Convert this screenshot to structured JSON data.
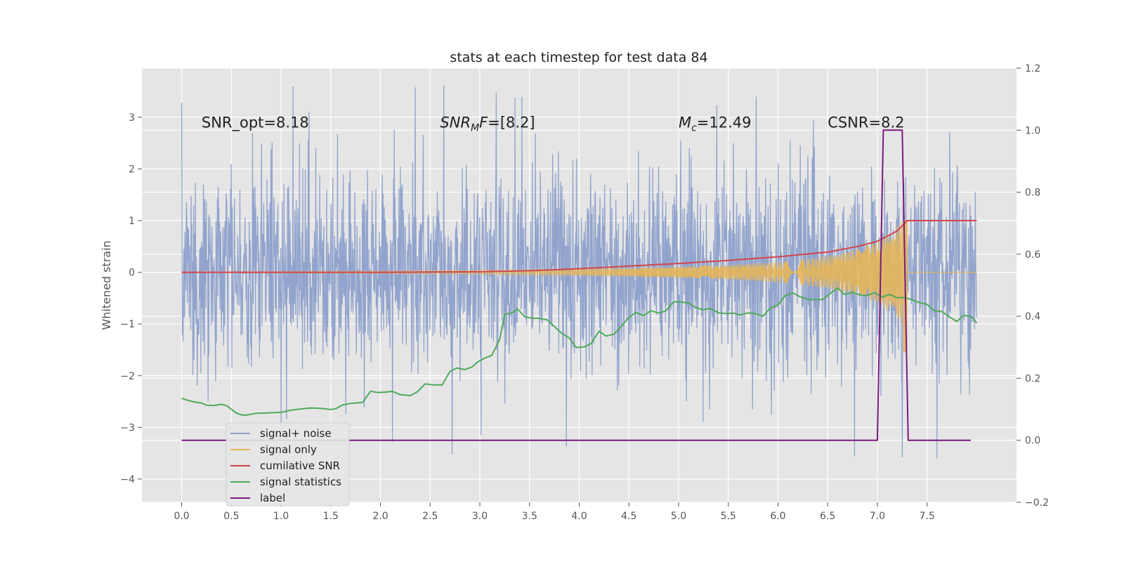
{
  "chart_data": {
    "type": "line",
    "title": "stats at each timestep for test data 84",
    "ylabel": "Whitened strain",
    "xlim": [
      -0.4,
      8.4
    ],
    "ylim": [
      -4.45,
      3.95
    ],
    "y2lim": [
      -0.2,
      1.2
    ],
    "x_ticks": [
      0.0,
      0.5,
      1.0,
      1.5,
      2.0,
      2.5,
      3.0,
      3.5,
      4.0,
      4.5,
      5.0,
      5.5,
      6.0,
      6.5,
      7.0,
      7.5
    ],
    "x_tick_labels": [
      "0.0",
      "0.5",
      "1.0",
      "1.5",
      "2.0",
      "2.5",
      "3.0",
      "3.5",
      "4.0",
      "4.5",
      "5.0",
      "5.5",
      "6.0",
      "6.5",
      "7.0",
      "7.5"
    ],
    "y_ticks": [
      -4,
      -3,
      -2,
      -1,
      0,
      1,
      2,
      3
    ],
    "y_tick_labels": [
      "−4",
      "−3",
      "−2",
      "−1",
      "0",
      "1",
      "2",
      "3"
    ],
    "y2_ticks": [
      -0.2,
      0.0,
      0.2,
      0.4,
      0.6,
      0.8,
      1.0,
      1.2
    ],
    "y2_tick_labels": [
      "−0.2",
      "0.0",
      "0.2",
      "0.4",
      "0.6",
      "0.8",
      "1.0",
      "1.2"
    ],
    "grid": true,
    "legend_position": "lower-left",
    "annotations": [
      {
        "x": 0.2,
        "y": 2.8,
        "parts": [
          {
            "t": "SNR_opt=8.18",
            "i": false
          }
        ]
      },
      {
        "x": 2.6,
        "y": 2.8,
        "parts": [
          {
            "t": "SNR",
            "i": true
          },
          {
            "t": "M",
            "i": true,
            "sub": true
          },
          {
            "t": "F",
            "i": true
          },
          {
            "t": "=[8.2]",
            "i": false
          }
        ]
      },
      {
        "x": 5.0,
        "y": 2.8,
        "parts": [
          {
            "t": "M",
            "i": true
          },
          {
            "t": "c",
            "i": true,
            "sub": true
          },
          {
            "t": "=12.49",
            "i": false
          }
        ]
      },
      {
        "x": 6.5,
        "y": 2.8,
        "parts": [
          {
            "t": "CSNR=8.2",
            "i": false
          }
        ]
      }
    ],
    "series": [
      {
        "name": "signal+ noise",
        "color": "#8da0cb",
        "axis": "left",
        "description": "dense noisy trace, x 0.0 to 8.0, mostly within -2.5..2.5, peaks near 3.6 and troughs near -3.6",
        "x_range": [
          0.0,
          8.0
        ],
        "peak_points": [
          [
            0.0,
            3.28
          ],
          [
            1.12,
            3.6
          ],
          [
            2.35,
            3.58
          ],
          [
            1.28,
            3.1
          ],
          [
            5.78,
            3.4
          ],
          [
            2.72,
            -3.52
          ],
          [
            3.87,
            -3.37
          ],
          [
            7.25,
            -3.58
          ],
          [
            7.6,
            -3.6
          ],
          [
            2.12,
            -3.28
          ],
          [
            1.0,
            -3.1
          ]
        ]
      },
      {
        "name": "signal only",
        "color": "#e5b65a",
        "axis": "left",
        "description": "chirp oscillation growing in amplitude, near 0 until ~3.5, amplitude ~0.9 by 7.2, drops to 0 after 7.3",
        "envelope": [
          [
            3.5,
            0.05
          ],
          [
            4.5,
            0.08
          ],
          [
            5.5,
            0.14
          ],
          [
            6.0,
            0.2
          ],
          [
            6.5,
            0.32
          ],
          [
            6.8,
            0.45
          ],
          [
            7.0,
            0.6
          ],
          [
            7.2,
            0.9
          ],
          [
            7.28,
            1.1
          ],
          [
            7.3,
            0.0
          ]
        ]
      },
      {
        "name": "cumilative SNR",
        "color": "#d2464b",
        "axis": "left",
        "points": [
          [
            0.0,
            0.0
          ],
          [
            1.0,
            0.0
          ],
          [
            2.0,
            0.0
          ],
          [
            3.0,
            0.01
          ],
          [
            3.5,
            0.03
          ],
          [
            4.0,
            0.07
          ],
          [
            4.5,
            0.12
          ],
          [
            5.0,
            0.17
          ],
          [
            5.5,
            0.23
          ],
          [
            6.0,
            0.3
          ],
          [
            6.5,
            0.39
          ],
          [
            6.8,
            0.5
          ],
          [
            7.0,
            0.6
          ],
          [
            7.2,
            0.8
          ],
          [
            7.3,
            1.0
          ],
          [
            8.0,
            1.0
          ]
        ]
      },
      {
        "name": "signal statistics",
        "color": "#50aa5a",
        "axis": "right",
        "points": [
          [
            0.0,
            0.135
          ],
          [
            0.05,
            0.13
          ],
          [
            0.12,
            0.124
          ],
          [
            0.2,
            0.12
          ],
          [
            0.25,
            0.113
          ],
          [
            0.32,
            0.112
          ],
          [
            0.4,
            0.116
          ],
          [
            0.45,
            0.112
          ],
          [
            0.5,
            0.1
          ],
          [
            0.55,
            0.088
          ],
          [
            0.6,
            0.082
          ],
          [
            0.65,
            0.081
          ],
          [
            0.75,
            0.087
          ],
          [
            0.85,
            0.088
          ],
          [
            1.0,
            0.09
          ],
          [
            1.1,
            0.097
          ],
          [
            1.2,
            0.101
          ],
          [
            1.3,
            0.104
          ],
          [
            1.4,
            0.103
          ],
          [
            1.5,
            0.099
          ],
          [
            1.55,
            0.102
          ],
          [
            1.62,
            0.114
          ],
          [
            1.7,
            0.119
          ],
          [
            1.82,
            0.122
          ],
          [
            1.9,
            0.158
          ],
          [
            1.97,
            0.154
          ],
          [
            2.05,
            0.155
          ],
          [
            2.12,
            0.158
          ],
          [
            2.2,
            0.147
          ],
          [
            2.3,
            0.144
          ],
          [
            2.37,
            0.156
          ],
          [
            2.45,
            0.182
          ],
          [
            2.52,
            0.179
          ],
          [
            2.62,
            0.178
          ],
          [
            2.7,
            0.222
          ],
          [
            2.77,
            0.233
          ],
          [
            2.85,
            0.228
          ],
          [
            2.92,
            0.236
          ],
          [
            2.98,
            0.253
          ],
          [
            3.05,
            0.265
          ],
          [
            3.12,
            0.274
          ],
          [
            3.2,
            0.325
          ],
          [
            3.25,
            0.407
          ],
          [
            3.32,
            0.41
          ],
          [
            3.38,
            0.423
          ],
          [
            3.45,
            0.399
          ],
          [
            3.52,
            0.394
          ],
          [
            3.6,
            0.393
          ],
          [
            3.68,
            0.388
          ],
          [
            3.75,
            0.367
          ],
          [
            3.82,
            0.346
          ],
          [
            3.9,
            0.33
          ],
          [
            3.97,
            0.299
          ],
          [
            4.05,
            0.301
          ],
          [
            4.12,
            0.312
          ],
          [
            4.2,
            0.352
          ],
          [
            4.27,
            0.336
          ],
          [
            4.35,
            0.342
          ],
          [
            4.42,
            0.366
          ],
          [
            4.5,
            0.396
          ],
          [
            4.57,
            0.412
          ],
          [
            4.65,
            0.402
          ],
          [
            4.72,
            0.418
          ],
          [
            4.8,
            0.41
          ],
          [
            4.87,
            0.417
          ],
          [
            4.95,
            0.446
          ],
          [
            5.02,
            0.446
          ],
          [
            5.1,
            0.443
          ],
          [
            5.17,
            0.428
          ],
          [
            5.25,
            0.421
          ],
          [
            5.32,
            0.425
          ],
          [
            5.4,
            0.411
          ],
          [
            5.47,
            0.409
          ],
          [
            5.55,
            0.41
          ],
          [
            5.62,
            0.404
          ],
          [
            5.7,
            0.411
          ],
          [
            5.77,
            0.409
          ],
          [
            5.85,
            0.4
          ],
          [
            5.92,
            0.425
          ],
          [
            6.0,
            0.437
          ],
          [
            6.07,
            0.466
          ],
          [
            6.15,
            0.475
          ],
          [
            6.22,
            0.463
          ],
          [
            6.3,
            0.455
          ],
          [
            6.37,
            0.453
          ],
          [
            6.45,
            0.454
          ],
          [
            6.52,
            0.472
          ],
          [
            6.6,
            0.491
          ],
          [
            6.67,
            0.47
          ],
          [
            6.75,
            0.477
          ],
          [
            6.82,
            0.469
          ],
          [
            6.9,
            0.467
          ],
          [
            6.97,
            0.476
          ],
          [
            7.05,
            0.462
          ],
          [
            7.12,
            0.47
          ],
          [
            7.2,
            0.46
          ],
          [
            7.28,
            0.46
          ],
          [
            7.35,
            0.453
          ],
          [
            7.42,
            0.444
          ],
          [
            7.5,
            0.438
          ],
          [
            7.57,
            0.418
          ],
          [
            7.65,
            0.415
          ],
          [
            7.72,
            0.399
          ],
          [
            7.8,
            0.383
          ],
          [
            7.87,
            0.403
          ],
          [
            7.95,
            0.398
          ],
          [
            8.0,
            0.378
          ]
        ]
      },
      {
        "name": "label",
        "color": "#7b1a7e",
        "axis": "right",
        "points": [
          [
            0.0,
            0.0
          ],
          [
            7.0,
            0.0
          ],
          [
            7.06,
            1.0
          ],
          [
            7.25,
            1.0
          ],
          [
            7.31,
            0.0
          ],
          [
            7.94,
            0.0
          ]
        ]
      }
    ]
  }
}
